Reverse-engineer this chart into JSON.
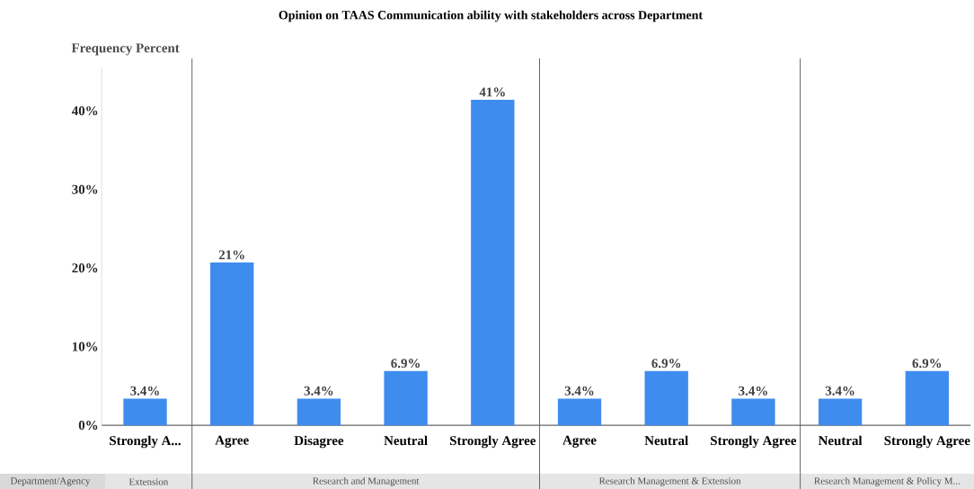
{
  "chart_data": {
    "type": "bar",
    "title": "Opinion on TAAS Communication ability with stakeholders across Department",
    "ylabel": "Frequency Percent",
    "categories": [
      "Strongly A...",
      "Agree",
      "Disagree",
      "Neutral",
      "Strongly Agree",
      "Agree",
      "Neutral",
      "Strongly Agree",
      "Neutral",
      "Strongly Agree"
    ],
    "values": [
      3.4,
      20.7,
      3.4,
      6.9,
      41.4,
      3.4,
      6.9,
      3.4,
      3.4,
      6.9
    ],
    "value_labels": [
      "3.4%",
      "21%",
      "3.4%",
      "6.9%",
      "41%",
      "3.4%",
      "6.9%",
      "3.4%",
      "3.4%",
      "6.9%"
    ],
    "color": "#3f8cef",
    "ylim": [
      0,
      45.5
    ],
    "yticks": [
      {
        "value": 0,
        "label": "0%"
      },
      {
        "value": 10,
        "label": "10%"
      },
      {
        "value": 20,
        "label": "20%"
      },
      {
        "value": 30,
        "label": "30%"
      },
      {
        "value": 40,
        "label": "40%"
      }
    ],
    "annotations": [
      "Department/Agency",
      "Extension",
      "Research and Management",
      "Research Management & Extension",
      "Research Management & Policy M..."
    ]
  }
}
